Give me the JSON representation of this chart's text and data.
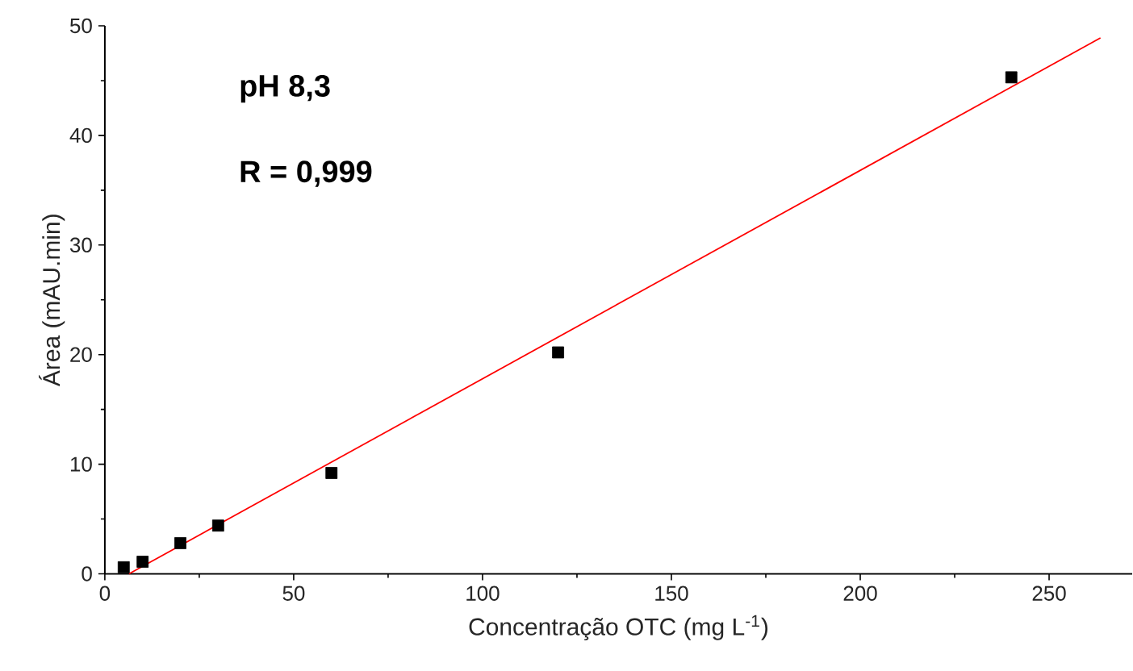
{
  "chart_data": {
    "type": "scatter",
    "xlabel": "Concentração OTC (mg L$^{-1}$)",
    "ylabel": "Área (mAU.min)",
    "annotations": [
      "pH 8,3",
      "R = 0,999"
    ],
    "xlim": [
      0,
      272
    ],
    "ylim": [
      0,
      50
    ],
    "xticks": [
      0,
      50,
      100,
      150,
      200,
      250
    ],
    "yticks": [
      0,
      10,
      20,
      30,
      40,
      50
    ],
    "series": [
      {
        "marker": "square",
        "color": "#000000",
        "x": [
          5,
          10,
          20,
          30,
          60,
          120,
          240
        ],
        "values": [
          0.6,
          1.1,
          2.8,
          4.4,
          9.2,
          20.2,
          45.3
        ]
      },
      {
        "type": "line",
        "marker": "none",
        "line_style": "solid",
        "color": "#ff0000",
        "x": [
          6.4,
          263.6
        ],
        "values": [
          0,
          48.9
        ]
      }
    ]
  }
}
